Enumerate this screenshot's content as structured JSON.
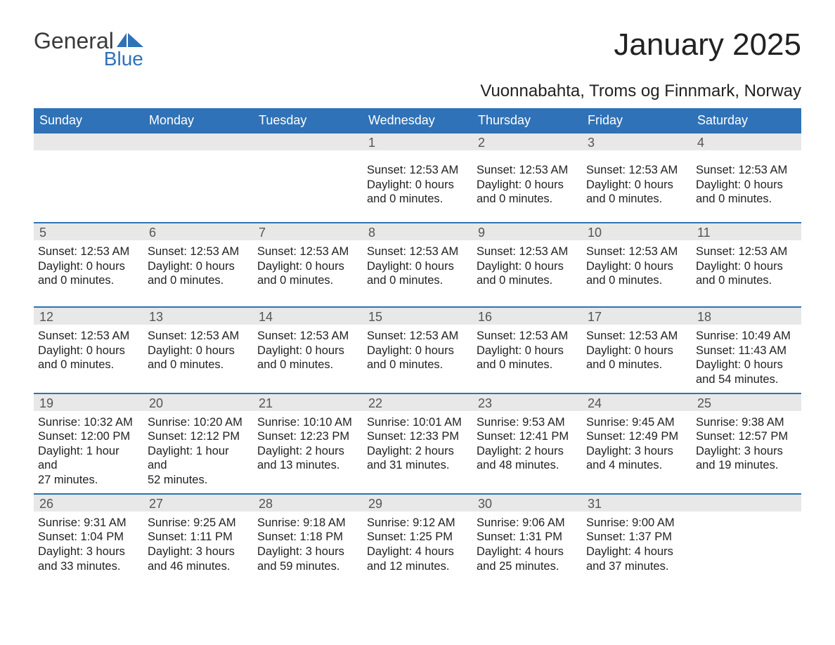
{
  "logo": {
    "word1": "General",
    "word2": "Blue",
    "accent_color": "#2f72b7"
  },
  "title": "January 2025",
  "subtitle": "Vuonnabahta, Troms og Finnmark, Norway",
  "colors": {
    "header_bg": "#2f72b7",
    "header_text": "#ffffff",
    "daynum_bg": "#e8e8e8",
    "daynum_text": "#555555",
    "body_text": "#222222",
    "row_border": "#2f72b7"
  },
  "day_headers": [
    "Sunday",
    "Monday",
    "Tuesday",
    "Wednesday",
    "Thursday",
    "Friday",
    "Saturday"
  ],
  "weeks": [
    [
      {
        "num": "",
        "lines": []
      },
      {
        "num": "",
        "lines": []
      },
      {
        "num": "",
        "lines": []
      },
      {
        "num": "1",
        "lines": [
          "Sunset: 12:53 AM",
          "Daylight: 0 hours",
          "and 0 minutes."
        ]
      },
      {
        "num": "2",
        "lines": [
          "Sunset: 12:53 AM",
          "Daylight: 0 hours",
          "and 0 minutes."
        ]
      },
      {
        "num": "3",
        "lines": [
          "Sunset: 12:53 AM",
          "Daylight: 0 hours",
          "and 0 minutes."
        ]
      },
      {
        "num": "4",
        "lines": [
          "Sunset: 12:53 AM",
          "Daylight: 0 hours",
          "and 0 minutes."
        ]
      }
    ],
    [
      {
        "num": "5",
        "lines": [
          "Sunset: 12:53 AM",
          "Daylight: 0 hours",
          "and 0 minutes."
        ]
      },
      {
        "num": "6",
        "lines": [
          "Sunset: 12:53 AM",
          "Daylight: 0 hours",
          "and 0 minutes."
        ]
      },
      {
        "num": "7",
        "lines": [
          "Sunset: 12:53 AM",
          "Daylight: 0 hours",
          "and 0 minutes."
        ]
      },
      {
        "num": "8",
        "lines": [
          "Sunset: 12:53 AM",
          "Daylight: 0 hours",
          "and 0 minutes."
        ]
      },
      {
        "num": "9",
        "lines": [
          "Sunset: 12:53 AM",
          "Daylight: 0 hours",
          "and 0 minutes."
        ]
      },
      {
        "num": "10",
        "lines": [
          "Sunset: 12:53 AM",
          "Daylight: 0 hours",
          "and 0 minutes."
        ]
      },
      {
        "num": "11",
        "lines": [
          "Sunset: 12:53 AM",
          "Daylight: 0 hours",
          "and 0 minutes."
        ]
      }
    ],
    [
      {
        "num": "12",
        "lines": [
          "Sunset: 12:53 AM",
          "Daylight: 0 hours",
          "and 0 minutes."
        ]
      },
      {
        "num": "13",
        "lines": [
          "Sunset: 12:53 AM",
          "Daylight: 0 hours",
          "and 0 minutes."
        ]
      },
      {
        "num": "14",
        "lines": [
          "Sunset: 12:53 AM",
          "Daylight: 0 hours",
          "and 0 minutes."
        ]
      },
      {
        "num": "15",
        "lines": [
          "Sunset: 12:53 AM",
          "Daylight: 0 hours",
          "and 0 minutes."
        ]
      },
      {
        "num": "16",
        "lines": [
          "Sunset: 12:53 AM",
          "Daylight: 0 hours",
          "and 0 minutes."
        ]
      },
      {
        "num": "17",
        "lines": [
          "Sunset: 12:53 AM",
          "Daylight: 0 hours",
          "and 0 minutes."
        ]
      },
      {
        "num": "18",
        "lines": [
          "Sunrise: 10:49 AM",
          "Sunset: 11:43 AM",
          "Daylight: 0 hours",
          "and 54 minutes."
        ]
      }
    ],
    [
      {
        "num": "19",
        "lines": [
          "Sunrise: 10:32 AM",
          "Sunset: 12:00 PM",
          "Daylight: 1 hour and",
          "27 minutes."
        ]
      },
      {
        "num": "20",
        "lines": [
          "Sunrise: 10:20 AM",
          "Sunset: 12:12 PM",
          "Daylight: 1 hour and",
          "52 minutes."
        ]
      },
      {
        "num": "21",
        "lines": [
          "Sunrise: 10:10 AM",
          "Sunset: 12:23 PM",
          "Daylight: 2 hours",
          "and 13 minutes."
        ]
      },
      {
        "num": "22",
        "lines": [
          "Sunrise: 10:01 AM",
          "Sunset: 12:33 PM",
          "Daylight: 2 hours",
          "and 31 minutes."
        ]
      },
      {
        "num": "23",
        "lines": [
          "Sunrise: 9:53 AM",
          "Sunset: 12:41 PM",
          "Daylight: 2 hours",
          "and 48 minutes."
        ]
      },
      {
        "num": "24",
        "lines": [
          "Sunrise: 9:45 AM",
          "Sunset: 12:49 PM",
          "Daylight: 3 hours",
          "and 4 minutes."
        ]
      },
      {
        "num": "25",
        "lines": [
          "Sunrise: 9:38 AM",
          "Sunset: 12:57 PM",
          "Daylight: 3 hours",
          "and 19 minutes."
        ]
      }
    ],
    [
      {
        "num": "26",
        "lines": [
          "Sunrise: 9:31 AM",
          "Sunset: 1:04 PM",
          "Daylight: 3 hours",
          "and 33 minutes."
        ]
      },
      {
        "num": "27",
        "lines": [
          "Sunrise: 9:25 AM",
          "Sunset: 1:11 PM",
          "Daylight: 3 hours",
          "and 46 minutes."
        ]
      },
      {
        "num": "28",
        "lines": [
          "Sunrise: 9:18 AM",
          "Sunset: 1:18 PM",
          "Daylight: 3 hours",
          "and 59 minutes."
        ]
      },
      {
        "num": "29",
        "lines": [
          "Sunrise: 9:12 AM",
          "Sunset: 1:25 PM",
          "Daylight: 4 hours",
          "and 12 minutes."
        ]
      },
      {
        "num": "30",
        "lines": [
          "Sunrise: 9:06 AM",
          "Sunset: 1:31 PM",
          "Daylight: 4 hours",
          "and 25 minutes."
        ]
      },
      {
        "num": "31",
        "lines": [
          "Sunrise: 9:00 AM",
          "Sunset: 1:37 PM",
          "Daylight: 4 hours",
          "and 37 minutes."
        ]
      },
      {
        "num": "",
        "lines": []
      }
    ]
  ]
}
